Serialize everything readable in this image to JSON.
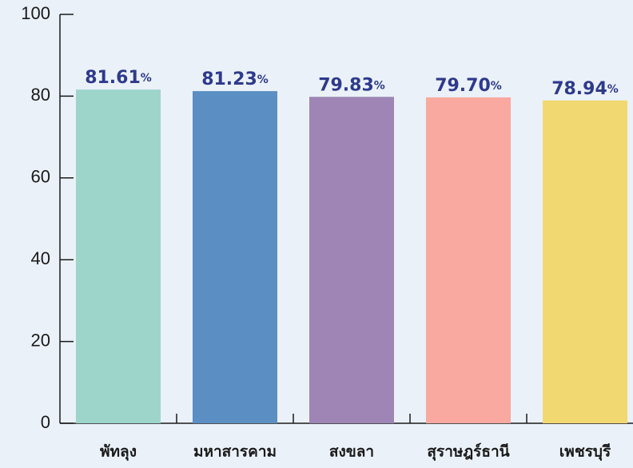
{
  "chart_data": {
    "type": "bar",
    "categories": [
      "พัทลุง",
      "มหาสารคาม",
      "สงขลา",
      "สุราษฎร์ธานี",
      "เพชรบุรี"
    ],
    "values": [
      81.61,
      81.23,
      79.83,
      79.7,
      78.94
    ],
    "value_labels": [
      "81.61%",
      "81.23%",
      "79.83%",
      "79.70%",
      "78.94%"
    ],
    "colors": [
      "#9dd5cb",
      "#5b8fc3",
      "#9e85b5",
      "#f9a9a0",
      "#f2d870"
    ],
    "ylim": [
      0,
      100
    ],
    "yticks": [
      0,
      20,
      40,
      60,
      80,
      100
    ],
    "grid": false
  }
}
